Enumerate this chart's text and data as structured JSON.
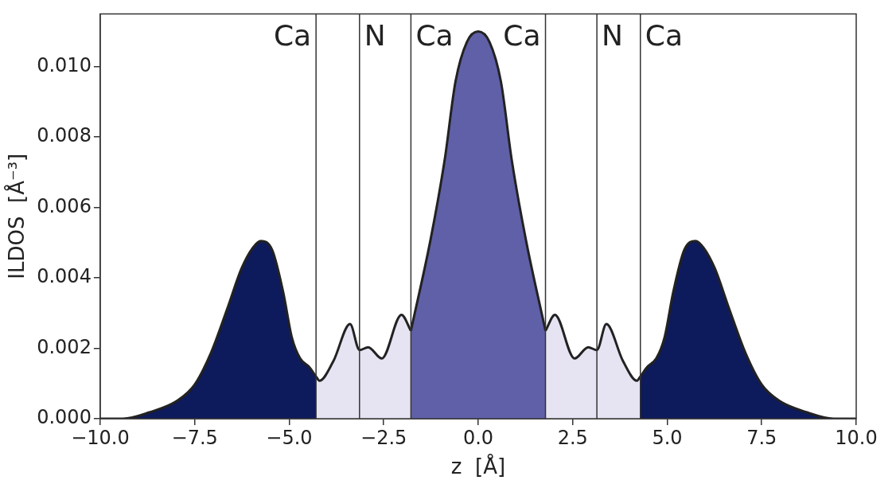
{
  "chart_data": {
    "type": "area",
    "xlabel": "z  [Å]",
    "ylabel": "ILDOS  [Å⁻³]",
    "xlim": [
      -10,
      10
    ],
    "xticks": [
      {
        "value": -10,
        "label": "−10.0"
      },
      {
        "value": -7.5,
        "label": "−7.5"
      },
      {
        "value": -5,
        "label": "−5.0"
      },
      {
        "value": -2.5,
        "label": "−2.5"
      },
      {
        "value": 0,
        "label": "0.0"
      },
      {
        "value": 2.5,
        "label": "2.5"
      },
      {
        "value": 5,
        "label": "5.0"
      },
      {
        "value": 7.5,
        "label": "7.5"
      },
      {
        "value": 10,
        "label": "10.0"
      }
    ],
    "ylim": [
      0,
      0.0115
    ],
    "yticks": [
      {
        "value": 0,
        "label": "0.000"
      },
      {
        "value": 0.002,
        "label": "0.002"
      },
      {
        "value": 0.004,
        "label": "0.004"
      },
      {
        "value": 0.006,
        "label": "0.006"
      },
      {
        "value": 0.008,
        "label": "0.008"
      },
      {
        "value": 0.01,
        "label": "0.010"
      }
    ],
    "grid": false,
    "legend": false,
    "series": [
      {
        "color": "#0d1a5c",
        "x": [
          -10,
          -9.4,
          -8.7,
          -7.95,
          -7.5,
          -7.07,
          -6.63,
          -6.26,
          -5.96,
          -5.75,
          -5.45,
          -5.16,
          -4.93,
          -4.71,
          -4.49,
          -4.29
        ],
        "values": [
          0,
          0,
          0.00018,
          0.00052,
          0.00097,
          0.00187,
          0.00315,
          0.00427,
          0.00486,
          0.00505,
          0.00479,
          0.0036,
          0.00231,
          0.00171,
          0.00149,
          0.0012
        ]
      },
      {
        "color": "#e6e4f2",
        "x": [
          -4.29,
          -4.2,
          -3.83,
          -3.39,
          -3.14,
          -2.91,
          -2.55,
          -2.03,
          -1.78
        ],
        "values": [
          0.0012,
          0.00108,
          0.00164,
          0.00269,
          0.00195,
          0.00203,
          0.00171,
          0.00295,
          0.0025
        ]
      },
      {
        "color": "#6060a8",
        "x": [
          -1.78,
          -1.26,
          -0.89,
          -0.6,
          -0.3,
          0,
          0.3,
          0.6,
          0.89,
          1.26,
          1.78
        ],
        "values": [
          0.0025,
          0.00509,
          0.00733,
          0.00958,
          0.0107,
          0.011,
          0.0107,
          0.00958,
          0.00733,
          0.00509,
          0.0025
        ]
      },
      {
        "color": "#e6e4f2",
        "x": [
          1.78,
          2.03,
          2.55,
          2.91,
          3.14,
          3.39,
          3.83,
          4.2,
          4.29
        ],
        "values": [
          0.0025,
          0.00295,
          0.00171,
          0.00203,
          0.00195,
          0.00269,
          0.00164,
          0.00108,
          0.0012
        ]
      },
      {
        "color": "#0d1a5c",
        "x": [
          4.29,
          4.49,
          4.71,
          4.93,
          5.16,
          5.45,
          5.75,
          5.96,
          6.26,
          6.63,
          7.07,
          7.5,
          7.95,
          8.7,
          9.4,
          10
        ],
        "values": [
          0.0012,
          0.00149,
          0.00171,
          0.00231,
          0.0036,
          0.00479,
          0.00505,
          0.00486,
          0.00427,
          0.00315,
          0.00187,
          0.00097,
          0.00052,
          0.00018,
          0,
          0
        ]
      }
    ],
    "ref_lines": [
      {
        "axis": "x",
        "value": -4.29,
        "color": "#333333",
        "label": "Ca"
      },
      {
        "axis": "x",
        "value": -3.14,
        "color": "#333333",
        "label": "N"
      },
      {
        "axis": "x",
        "value": -1.78,
        "color": "#333333",
        "label": "Ca"
      },
      {
        "axis": "x",
        "value": 1.78,
        "color": "#333333",
        "label": "Ca"
      },
      {
        "axis": "x",
        "value": 3.14,
        "color": "#333333",
        "label": "N"
      },
      {
        "axis": "x",
        "value": 4.29,
        "color": "#333333",
        "label": "Ca"
      }
    ]
  }
}
